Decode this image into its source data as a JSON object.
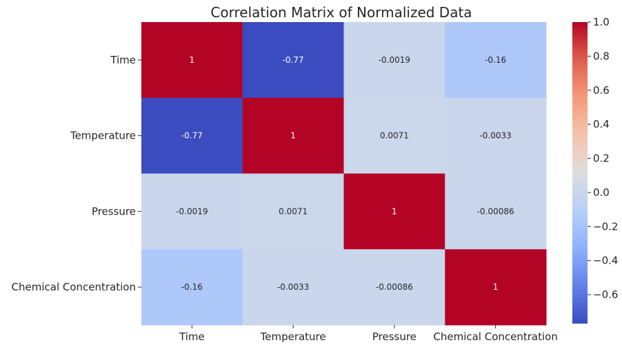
{
  "chart_data": {
    "type": "heatmap",
    "title": "Correlation Matrix of Normalized Data",
    "row_labels": [
      "Time",
      "Temperature",
      "Pressure",
      "Chemical Concentration"
    ],
    "col_labels": [
      "Time",
      "Temperature",
      "Pressure",
      "Chemical Concentration"
    ],
    "values": [
      [
        1,
        -0.77,
        -0.0019,
        -0.16
      ],
      [
        -0.77,
        1,
        0.0071,
        -0.0033
      ],
      [
        -0.0019,
        0.0071,
        1,
        -0.00086
      ],
      [
        -0.16,
        -0.0033,
        -0.00086,
        1
      ]
    ],
    "cell_labels": [
      [
        "1",
        "-0.77",
        "-0.0019",
        "-0.16"
      ],
      [
        "-0.77",
        "1",
        "0.0071",
        "-0.0033"
      ],
      [
        "-0.0019",
        "0.0071",
        "1",
        "-0.00086"
      ],
      [
        "-0.16",
        "-0.0033",
        "-0.00086",
        "1"
      ]
    ],
    "colormap": "coolwarm",
    "colorbar": {
      "vmin": -0.77,
      "vmax": 1.0,
      "ticks": [
        1.0,
        0.8,
        0.6,
        0.4,
        0.2,
        0.0,
        -0.2,
        -0.4,
        -0.6
      ],
      "tick_labels": [
        "1.0",
        "0.8",
        "0.6",
        "0.4",
        "0.2",
        "0.0",
        "−0.2",
        "−0.4",
        "−0.6"
      ]
    }
  }
}
